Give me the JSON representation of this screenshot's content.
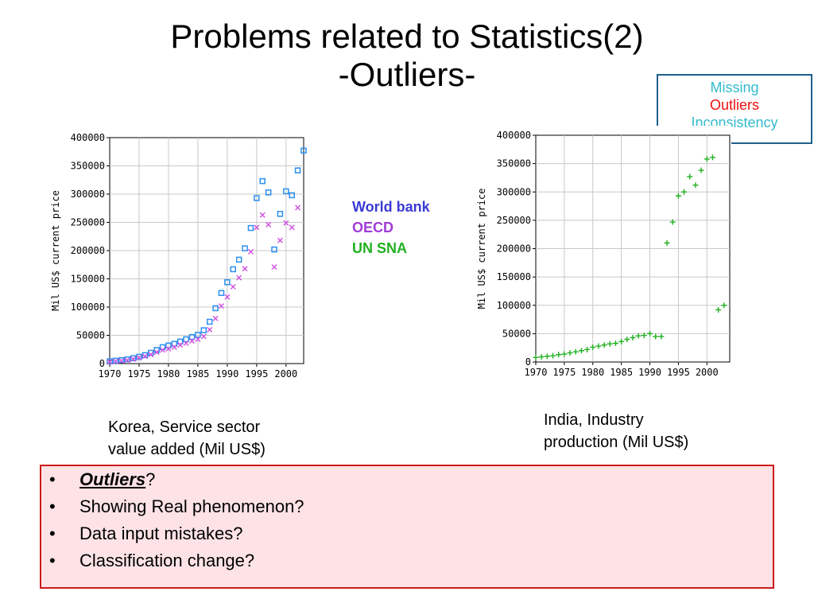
{
  "slide": {
    "title_line1": "Problems related to Statistics(2)",
    "title_line2": "-Outliers-"
  },
  "tags": {
    "missing": "Missing",
    "outliers": "Outliers",
    "inconsistency": "Inconsistency",
    "color_missing": "#33bbcc",
    "color_outliers": "#ee1111"
  },
  "legend": {
    "items": [
      {
        "label": "World bank",
        "color": "#3a3ad6"
      },
      {
        "label": "OECD",
        "color": "#a03cd8"
      },
      {
        "label": "UN SNA",
        "color": "#20b020"
      }
    ]
  },
  "captions": {
    "korea_line1": "Korea, Service sector",
    "korea_line2": "value added (Mil US$)",
    "india_line1": "India, Industry",
    "india_line2": "production (Mil US$)"
  },
  "bullets": {
    "b1_emph": "Outliers",
    "b1_rest": "?",
    "b2": "Showing Real phenomenon?",
    "b3": "Data input mistakes?",
    "b4": "Classification change?"
  },
  "chart_data": [
    {
      "type": "scatter",
      "ylabel": "Mil US$ current price",
      "xlim": [
        1970,
        2003
      ],
      "ylim": [
        0,
        400000
      ],
      "xticks": [
        1970,
        1975,
        1980,
        1985,
        1990,
        1995,
        2000
      ],
      "yticks": [
        0,
        50000,
        100000,
        150000,
        200000,
        250000,
        300000,
        350000,
        400000
      ],
      "grid": true,
      "series": [
        {
          "name": "World bank",
          "marker": "square",
          "color": "#2c8ff0",
          "x": [
            1970,
            1971,
            1972,
            1973,
            1974,
            1975,
            1976,
            1977,
            1978,
            1979,
            1980,
            1981,
            1982,
            1983,
            1984,
            1985,
            1986,
            1987,
            1988,
            1989,
            1990,
            1991,
            1992,
            1993,
            1994,
            1995,
            1996,
            1997,
            1998,
            1999,
            2000,
            2001,
            2002,
            2003
          ],
          "y": [
            4000,
            5000,
            6000,
            7500,
            9500,
            12000,
            15000,
            19000,
            24000,
            29000,
            32000,
            35000,
            39000,
            43000,
            47000,
            51000,
            59000,
            74000,
            98000,
            125000,
            144000,
            167000,
            184000,
            204000,
            240000,
            293000,
            323000,
            303000,
            202000,
            265000,
            305000,
            298000,
            342000,
            377000
          ]
        },
        {
          "name": "OECD",
          "marker": "x",
          "color": "#d050e0",
          "x": [
            1970,
            1971,
            1972,
            1973,
            1974,
            1975,
            1976,
            1977,
            1978,
            1979,
            1980,
            1981,
            1982,
            1983,
            1984,
            1985,
            1986,
            1987,
            1988,
            1989,
            1990,
            1991,
            1992,
            1993,
            1994,
            1995,
            1996,
            1997,
            1998,
            1999,
            2000,
            2001,
            2002
          ],
          "y": [
            3000,
            4000,
            5000,
            6000,
            8000,
            10000,
            13000,
            16000,
            20000,
            24000,
            26000,
            29000,
            33000,
            36000,
            40000,
            43000,
            48000,
            60000,
            80000,
            102000,
            118000,
            136000,
            152000,
            168000,
            198000,
            241000,
            263000,
            246000,
            171000,
            218000,
            249000,
            241000,
            276000
          ]
        }
      ]
    },
    {
      "type": "scatter",
      "ylabel": "Mil US$ current price",
      "xlim": [
        1970,
        2004
      ],
      "ylim": [
        0,
        400000
      ],
      "xticks": [
        1970,
        1975,
        1980,
        1985,
        1990,
        1995,
        2000
      ],
      "yticks": [
        0,
        50000,
        100000,
        150000,
        200000,
        250000,
        300000,
        350000,
        400000
      ],
      "grid": true,
      "series": [
        {
          "name": "UN SNA",
          "marker": "plus",
          "color": "#20b020",
          "x": [
            1970,
            1971,
            1972,
            1973,
            1974,
            1975,
            1976,
            1977,
            1978,
            1979,
            1980,
            1981,
            1982,
            1983,
            1984,
            1985,
            1986,
            1987,
            1988,
            1989,
            1990,
            1991,
            1992,
            1993,
            1994,
            1995,
            1996,
            1997,
            1998,
            1999,
            2000,
            2001,
            2002,
            2003
          ],
          "y": [
            8000,
            9000,
            10000,
            11000,
            13000,
            14000,
            16000,
            18000,
            20000,
            22000,
            26000,
            28000,
            30000,
            32000,
            33000,
            36000,
            40000,
            43000,
            46000,
            47000,
            50000,
            45000,
            45000,
            210000,
            247000,
            293000,
            300000,
            327000,
            312000,
            338000,
            358000,
            361000,
            92000,
            100000
          ]
        }
      ]
    }
  ]
}
